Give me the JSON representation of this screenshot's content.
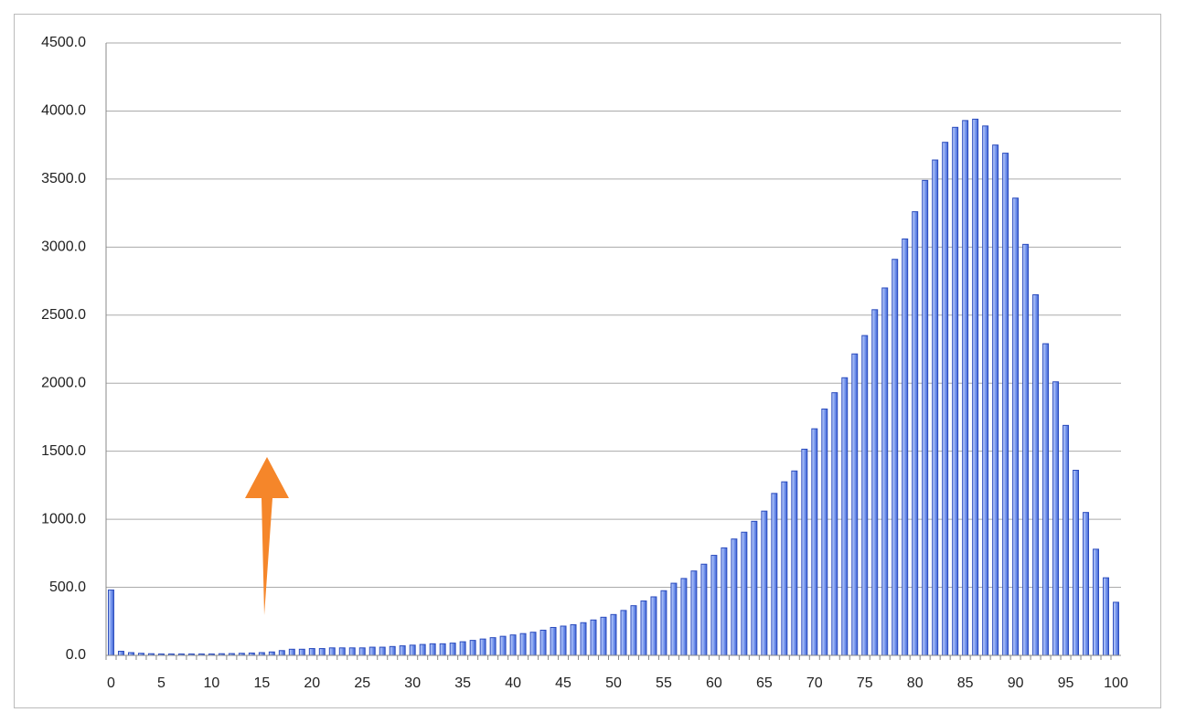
{
  "chart_data": {
    "type": "bar",
    "categories": [
      "0",
      null,
      null,
      null,
      null,
      "5",
      null,
      null,
      null,
      null,
      "10",
      null,
      null,
      null,
      null,
      "15",
      null,
      null,
      null,
      null,
      "20",
      null,
      null,
      null,
      null,
      "25",
      null,
      null,
      null,
      null,
      "30",
      null,
      null,
      null,
      null,
      "35",
      null,
      null,
      null,
      null,
      "40",
      null,
      null,
      null,
      null,
      "45",
      null,
      null,
      null,
      null,
      "50",
      null,
      null,
      null,
      null,
      "55",
      null,
      null,
      null,
      null,
      "60",
      null,
      null,
      null,
      null,
      "65",
      null,
      null,
      null,
      null,
      "70",
      null,
      null,
      null,
      null,
      "75",
      null,
      null,
      null,
      null,
      "80",
      null,
      null,
      null,
      null,
      "85",
      null,
      null,
      null,
      null,
      "90",
      null,
      null,
      null,
      null,
      "95",
      null,
      null,
      null,
      null,
      "100"
    ],
    "values": [
      480,
      30,
      20,
      15,
      12,
      10,
      10,
      10,
      10,
      10,
      10,
      12,
      13,
      15,
      17,
      20,
      25,
      35,
      45,
      45,
      50,
      50,
      55,
      55,
      55,
      55,
      60,
      60,
      65,
      70,
      75,
      80,
      85,
      85,
      90,
      100,
      110,
      120,
      130,
      140,
      150,
      160,
      170,
      185,
      205,
      215,
      225,
      240,
      260,
      280,
      300,
      330,
      365,
      400,
      430,
      475,
      530,
      565,
      620,
      670,
      735,
      790,
      855,
      905,
      985,
      1060,
      1190,
      1275,
      1355,
      1515,
      1665,
      1810,
      1930,
      2040,
      2215,
      2350,
      2540,
      2700,
      2910,
      3060,
      3260,
      3490,
      3640,
      3770,
      3880,
      3930,
      3940,
      3890,
      3750,
      3690,
      3360,
      3020,
      2650,
      2290,
      2010,
      1690,
      1360,
      1050,
      780,
      570,
      390
    ],
    "color": "#5b80e4",
    "ylim": [
      0,
      4500
    ],
    "yticks": [
      {
        "value": 0,
        "label": "0.0"
      },
      {
        "value": 500,
        "label": "500.0"
      },
      {
        "value": 1000,
        "label": "1000.0"
      },
      {
        "value": 1500,
        "label": "1500.0"
      },
      {
        "value": 2000,
        "label": "2000.0"
      },
      {
        "value": 2500,
        "label": "2500.0"
      },
      {
        "value": 3000,
        "label": "3000.0"
      },
      {
        "value": 3500,
        "label": "3500.0"
      },
      {
        "value": 4000,
        "label": "4000.0"
      },
      {
        "value": 4500,
        "label": "4500.0"
      }
    ],
    "grid": true
  }
}
